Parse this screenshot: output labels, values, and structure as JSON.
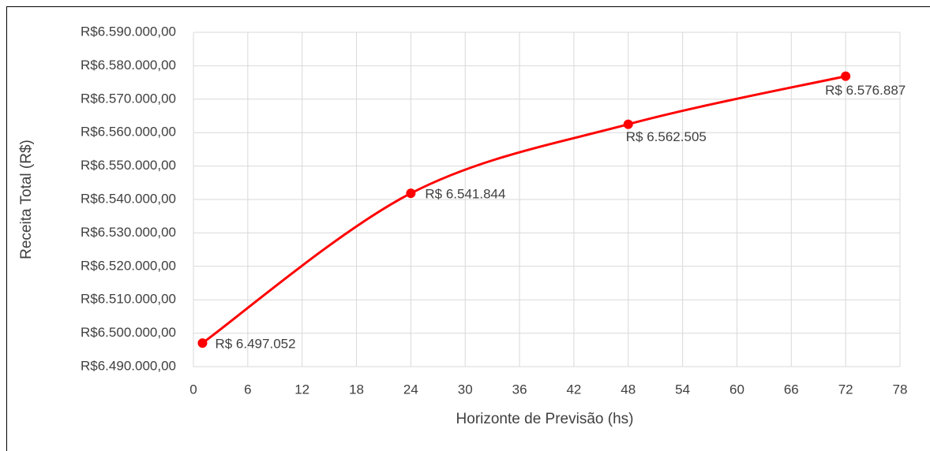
{
  "chart_data": {
    "type": "line",
    "x_label": "Horizonte de Previsão (hs)",
    "y_label": "Receita Total (R$)",
    "x": [
      1,
      24,
      48,
      72
    ],
    "series": [
      {
        "color": "#ff0000",
        "values": [
          6497052,
          6541844,
          6562505,
          6576887
        ],
        "value_labels": [
          "R$ 6.497.052",
          "R$ 6.541.844",
          "R$ 6.562.505",
          "R$ 6.576.887"
        ]
      }
    ],
    "xlim": [
      0,
      78
    ],
    "xticks": [
      0,
      6,
      12,
      18,
      24,
      30,
      36,
      42,
      48,
      54,
      60,
      66,
      72,
      78
    ],
    "ylim": [
      6490000,
      6590000
    ],
    "yticks": [
      {
        "value": 6490000,
        "label": "R$6.490.000,00"
      },
      {
        "value": 6500000,
        "label": "R$6.500.000,00"
      },
      {
        "value": 6510000,
        "label": "R$6.510.000,00"
      },
      {
        "value": 6520000,
        "label": "R$6.520.000,00"
      },
      {
        "value": 6530000,
        "label": "R$6.530.000,00"
      },
      {
        "value": 6540000,
        "label": "R$6.540.000,00"
      },
      {
        "value": 6550000,
        "label": "R$6.550.000,00"
      },
      {
        "value": 6560000,
        "label": "R$6.560.000,00"
      },
      {
        "value": 6570000,
        "label": "R$6.570.000,00"
      },
      {
        "value": 6580000,
        "label": "R$6.580.000,00"
      },
      {
        "value": 6590000,
        "label": "R$6.590.000,00"
      }
    ],
    "grid": true
  }
}
